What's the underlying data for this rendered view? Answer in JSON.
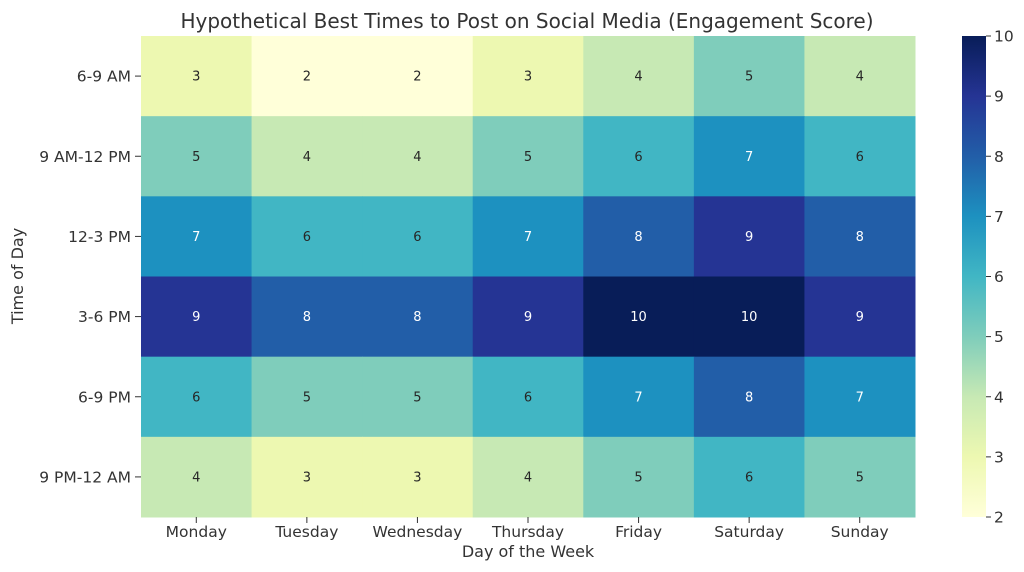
{
  "chart_data": {
    "type": "heatmap",
    "title": "Hypothetical Best Times to Post on Social Media (Engagement Score)",
    "xlabel": "Day of the Week",
    "ylabel": "Time of Day",
    "x_categories": [
      "Monday",
      "Tuesday",
      "Wednesday",
      "Thursday",
      "Friday",
      "Saturday",
      "Sunday"
    ],
    "y_categories": [
      "6-9 AM",
      "9 AM-12 PM",
      "12-3 PM",
      "3-6 PM",
      "6-9 PM",
      "9 PM-12 AM"
    ],
    "values": [
      [
        3,
        2,
        2,
        3,
        4,
        5,
        4
      ],
      [
        5,
        4,
        4,
        5,
        6,
        7,
        6
      ],
      [
        7,
        6,
        6,
        7,
        8,
        9,
        8
      ],
      [
        9,
        8,
        8,
        9,
        10,
        10,
        9
      ],
      [
        6,
        5,
        5,
        6,
        7,
        8,
        7
      ],
      [
        4,
        3,
        3,
        4,
        5,
        6,
        5
      ]
    ],
    "colorbar": {
      "min": 2,
      "max": 10,
      "ticks": [
        2,
        3,
        4,
        5,
        6,
        7,
        8,
        9,
        10
      ],
      "colormap": "YlGnBu"
    },
    "cell_labels": true,
    "grid": false
  }
}
